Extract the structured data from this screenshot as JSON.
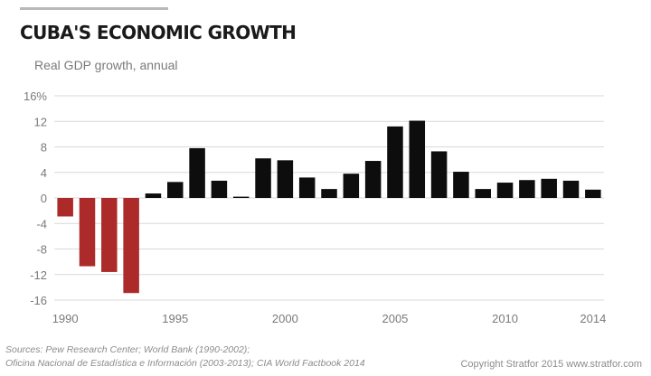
{
  "header": {
    "title": "CUBA'S ECONOMIC GROWTH",
    "subtitle": "Real GDP growth, annual"
  },
  "chart_data": {
    "type": "bar",
    "title": "CUBA'S ECONOMIC GROWTH",
    "subtitle": "Real GDP growth, annual",
    "xlabel": "",
    "ylabel": "",
    "ylim": [
      -16,
      16
    ],
    "yticks": [
      16,
      12,
      8,
      4,
      0,
      -4,
      -8,
      -12,
      -16
    ],
    "ytick_labels": [
      "16%",
      "12",
      "8",
      "4",
      "0",
      "-4",
      "-8",
      "-12",
      "-16"
    ],
    "xticks": [
      "1990",
      "1995",
      "2000",
      "2005",
      "2010",
      "2014"
    ],
    "grid": true,
    "colors": {
      "positive": "#0d0d0d",
      "negative": "#ad2a2a",
      "grid": "#d9d9d9",
      "axis_text": "#7a7a7a"
    },
    "categories": [
      "1990",
      "1991",
      "1992",
      "1993",
      "1994",
      "1995",
      "1996",
      "1997",
      "1998",
      "1999",
      "2000",
      "2001",
      "2002",
      "2003",
      "2004",
      "2005",
      "2006",
      "2007",
      "2008",
      "2009",
      "2010",
      "2011",
      "2012",
      "2013",
      "2014"
    ],
    "values": [
      -2.9,
      -10.7,
      -11.6,
      -14.9,
      0.7,
      2.5,
      7.8,
      2.7,
      0.2,
      6.2,
      5.9,
      3.2,
      1.4,
      3.8,
      5.8,
      11.2,
      12.1,
      7.3,
      4.1,
      1.4,
      2.4,
      2.8,
      3.0,
      2.7,
      1.3
    ]
  },
  "footer": {
    "sources_line1": "Sources: Pew Research Center; World Bank (1990-2002);",
    "sources_line2": "Oficina Nacional de Estadística e Información (2003-2013); CIA World Factbook 2014",
    "copyright": "Copyright Stratfor 2015   www.stratfor.com"
  }
}
